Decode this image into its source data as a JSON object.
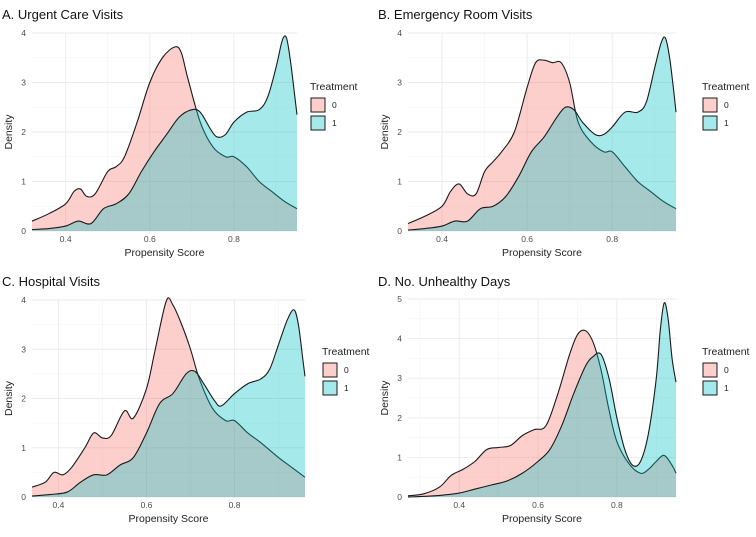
{
  "chart_data": [
    {
      "type": "area",
      "panel": "A",
      "title": "A. Urgent Care Visits",
      "xlabel": "Propensity Score",
      "ylabel": "Density",
      "xlim": [
        0.32,
        0.95
      ],
      "ylim": [
        0,
        4
      ],
      "xticks": [
        0.4,
        0.6,
        0.8
      ],
      "xtick_labels": [
        "0.4",
        "0.6",
        "0.8"
      ],
      "yticks": [
        0,
        1,
        2,
        3,
        4
      ],
      "ytick_labels": [
        "0",
        "1",
        "2",
        "3",
        "4"
      ],
      "legend": {
        "title": "Treatment",
        "labels": [
          "0",
          "1"
        ],
        "position": "right"
      },
      "series": [
        {
          "name": "0",
          "color": "#F8766D",
          "x": [
            0.32,
            0.36,
            0.4,
            0.42,
            0.435,
            0.45,
            0.47,
            0.5,
            0.52,
            0.54,
            0.57,
            0.6,
            0.63,
            0.66,
            0.675,
            0.69,
            0.72,
            0.75,
            0.78,
            0.8,
            0.83,
            0.86,
            0.89,
            0.92,
            0.95
          ],
          "y": [
            0.2,
            0.35,
            0.55,
            0.8,
            0.85,
            0.7,
            0.75,
            1.2,
            1.3,
            1.5,
            2.2,
            3.0,
            3.5,
            3.72,
            3.6,
            3.1,
            2.2,
            1.7,
            1.5,
            1.5,
            1.3,
            1.0,
            0.8,
            0.6,
            0.45
          ]
        },
        {
          "name": "1",
          "color": "#00BFC4",
          "x": [
            0.32,
            0.36,
            0.4,
            0.43,
            0.46,
            0.49,
            0.52,
            0.55,
            0.58,
            0.61,
            0.64,
            0.67,
            0.7,
            0.72,
            0.745,
            0.76,
            0.78,
            0.8,
            0.83,
            0.86,
            0.88,
            0.9,
            0.915,
            0.925,
            0.935,
            0.945,
            0.95
          ],
          "y": [
            0.03,
            0.05,
            0.1,
            0.2,
            0.15,
            0.45,
            0.55,
            0.75,
            1.2,
            1.6,
            1.95,
            2.3,
            2.45,
            2.4,
            2.05,
            1.9,
            1.95,
            2.2,
            2.4,
            2.45,
            2.7,
            3.3,
            3.85,
            3.9,
            3.4,
            2.7,
            2.35
          ]
        }
      ]
    },
    {
      "type": "area",
      "panel": "B",
      "title": "B. Emergency Room Visits",
      "xlabel": "Propensity Score",
      "ylabel": "Density",
      "xlim": [
        0.32,
        0.95
      ],
      "ylim": [
        0,
        4
      ],
      "xticks": [
        0.4,
        0.6,
        0.8
      ],
      "xtick_labels": [
        "0.4",
        "0.6",
        "0.8"
      ],
      "yticks": [
        0,
        1,
        2,
        3,
        4
      ],
      "ytick_labels": [
        "0",
        "1",
        "2",
        "3",
        "4"
      ],
      "legend": {
        "title": "Treatment",
        "labels": [
          "0",
          "1"
        ],
        "position": "right"
      },
      "series": [
        {
          "name": "0",
          "color": "#F8766D",
          "x": [
            0.32,
            0.36,
            0.4,
            0.42,
            0.44,
            0.46,
            0.48,
            0.5,
            0.52,
            0.54,
            0.57,
            0.6,
            0.62,
            0.64,
            0.66,
            0.68,
            0.7,
            0.72,
            0.75,
            0.78,
            0.8,
            0.83,
            0.86,
            0.89,
            0.92,
            0.95
          ],
          "y": [
            0.15,
            0.3,
            0.5,
            0.8,
            0.95,
            0.75,
            0.75,
            1.2,
            1.4,
            1.6,
            2.0,
            2.9,
            3.4,
            3.45,
            3.4,
            3.4,
            3.0,
            2.2,
            1.8,
            1.6,
            1.6,
            1.3,
            1.0,
            0.8,
            0.6,
            0.45
          ]
        },
        {
          "name": "1",
          "color": "#00BFC4",
          "x": [
            0.32,
            0.36,
            0.4,
            0.43,
            0.46,
            0.49,
            0.52,
            0.55,
            0.58,
            0.61,
            0.64,
            0.67,
            0.69,
            0.71,
            0.73,
            0.76,
            0.78,
            0.8,
            0.83,
            0.86,
            0.88,
            0.9,
            0.915,
            0.925,
            0.935,
            0.945,
            0.95
          ],
          "y": [
            0.02,
            0.05,
            0.1,
            0.2,
            0.2,
            0.45,
            0.5,
            0.7,
            1.1,
            1.6,
            1.9,
            2.3,
            2.5,
            2.45,
            2.2,
            1.95,
            1.95,
            2.1,
            2.4,
            2.4,
            2.6,
            3.3,
            3.8,
            3.9,
            3.5,
            2.8,
            2.4
          ]
        }
      ]
    },
    {
      "type": "area",
      "panel": "C",
      "title": "C. Hospital Visits",
      "xlabel": "Propensity Score",
      "ylabel": "Density",
      "xlim": [
        0.34,
        0.96
      ],
      "ylim": [
        0,
        4
      ],
      "xticks": [
        0.4,
        0.6,
        0.8
      ],
      "xtick_labels": [
        "0.4",
        "0.6",
        "0.8"
      ],
      "yticks": [
        0,
        1,
        2,
        3,
        4
      ],
      "ytick_labels": [
        "0",
        "1",
        "2",
        "3",
        "4"
      ],
      "legend": {
        "title": "Treatment",
        "labels": [
          "0",
          "1"
        ],
        "position": "right"
      },
      "series": [
        {
          "name": "0",
          "color": "#F8766D",
          "x": [
            0.34,
            0.37,
            0.39,
            0.41,
            0.43,
            0.46,
            0.48,
            0.5,
            0.52,
            0.55,
            0.57,
            0.6,
            0.62,
            0.645,
            0.66,
            0.68,
            0.7,
            0.72,
            0.75,
            0.78,
            0.8,
            0.83,
            0.86,
            0.9,
            0.93,
            0.96
          ],
          "y": [
            0.2,
            0.3,
            0.5,
            0.45,
            0.6,
            1.0,
            1.3,
            1.2,
            1.25,
            1.75,
            1.6,
            2.2,
            3.0,
            3.98,
            3.9,
            3.5,
            3.0,
            2.4,
            1.8,
            1.55,
            1.55,
            1.3,
            1.1,
            0.8,
            0.6,
            0.4
          ]
        },
        {
          "name": "1",
          "color": "#00BFC4",
          "x": [
            0.34,
            0.38,
            0.42,
            0.45,
            0.48,
            0.51,
            0.54,
            0.57,
            0.6,
            0.63,
            0.66,
            0.69,
            0.71,
            0.73,
            0.755,
            0.77,
            0.8,
            0.83,
            0.86,
            0.88,
            0.9,
            0.92,
            0.935,
            0.945,
            0.955,
            0.96
          ],
          "y": [
            0.02,
            0.05,
            0.1,
            0.3,
            0.45,
            0.45,
            0.65,
            0.8,
            1.3,
            1.9,
            2.1,
            2.5,
            2.55,
            2.3,
            1.95,
            1.85,
            2.1,
            2.3,
            2.4,
            2.6,
            3.1,
            3.6,
            3.8,
            3.5,
            2.8,
            2.45
          ]
        }
      ]
    },
    {
      "type": "area",
      "panel": "D",
      "title": "D. No. Unhealthy Days",
      "xlabel": "Propensity Score",
      "ylabel": "Density",
      "xlim": [
        0.27,
        0.95
      ],
      "ylim": [
        0,
        5
      ],
      "xticks": [
        0.4,
        0.6,
        0.8
      ],
      "xtick_labels": [
        "0.4",
        "0.6",
        "0.8"
      ],
      "yticks": [
        0,
        1,
        2,
        3,
        4,
        5
      ],
      "ytick_labels": [
        "0",
        "1",
        "2",
        "3",
        "4",
        "5"
      ],
      "legend": {
        "title": "Treatment",
        "labels": [
          "0",
          "1"
        ],
        "position": "right"
      },
      "series": [
        {
          "name": "0",
          "color": "#F8766D",
          "x": [
            0.27,
            0.31,
            0.35,
            0.38,
            0.41,
            0.44,
            0.47,
            0.5,
            0.53,
            0.56,
            0.59,
            0.62,
            0.65,
            0.68,
            0.7,
            0.72,
            0.74,
            0.76,
            0.78,
            0.8,
            0.83,
            0.86,
            0.88,
            0.9,
            0.92,
            0.94,
            0.95
          ],
          "y": [
            0.03,
            0.08,
            0.25,
            0.55,
            0.7,
            0.9,
            1.2,
            1.25,
            1.3,
            1.55,
            1.7,
            1.8,
            2.6,
            3.6,
            4.1,
            4.2,
            3.9,
            3.2,
            2.2,
            1.4,
            0.85,
            0.6,
            0.7,
            0.9,
            1.05,
            0.8,
            0.6
          ]
        },
        {
          "name": "1",
          "color": "#00BFC4",
          "x": [
            0.27,
            0.32,
            0.36,
            0.4,
            0.44,
            0.48,
            0.52,
            0.56,
            0.6,
            0.63,
            0.66,
            0.69,
            0.72,
            0.74,
            0.76,
            0.78,
            0.8,
            0.82,
            0.84,
            0.86,
            0.88,
            0.9,
            0.91,
            0.92,
            0.93,
            0.94,
            0.95
          ],
          "y": [
            0.0,
            0.02,
            0.05,
            0.1,
            0.2,
            0.3,
            0.4,
            0.6,
            0.9,
            1.2,
            1.8,
            2.6,
            3.3,
            3.55,
            3.6,
            3.0,
            2.0,
            1.2,
            0.8,
            0.9,
            1.6,
            3.0,
            4.2,
            4.9,
            4.5,
            3.5,
            2.9
          ]
        }
      ]
    }
  ]
}
